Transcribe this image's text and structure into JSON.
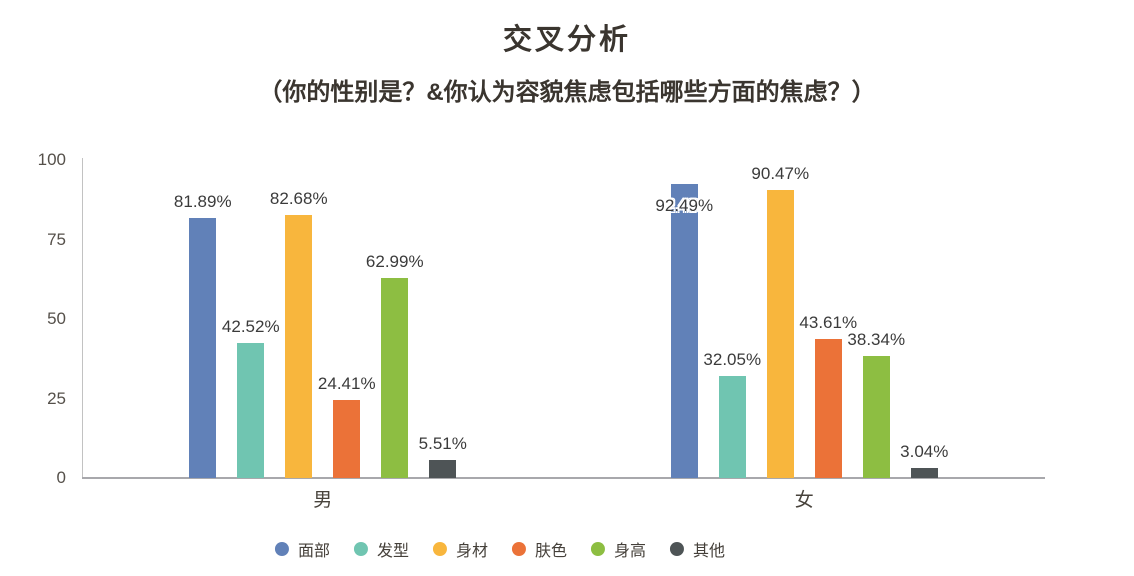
{
  "chart_data": {
    "type": "bar",
    "title": "交叉分析",
    "subtitle": "（你的性别是？&你认为容貌焦虑包括哪些方面的焦虑？）",
    "categories": [
      "男",
      "女"
    ],
    "series": [
      {
        "name": "面部",
        "color": "#6181b8",
        "values": [
          81.89,
          92.49
        ]
      },
      {
        "name": "发型",
        "color": "#70c5b1",
        "values": [
          42.52,
          32.05
        ]
      },
      {
        "name": "身材",
        "color": "#f8b63d",
        "values": [
          82.68,
          90.47
        ]
      },
      {
        "name": "肤色",
        "color": "#eb7238",
        "values": [
          24.41,
          43.61
        ]
      },
      {
        "name": "身高",
        "color": "#8dbe42",
        "values": [
          62.99,
          38.34
        ]
      },
      {
        "name": "其他",
        "color": "#4e5456",
        "values": [
          5.51,
          3.04
        ]
      }
    ],
    "value_label_format": "percent_2dp",
    "xlabel": "",
    "ylabel": "",
    "ylim": [
      0,
      100
    ],
    "yticks": [
      "0",
      "25",
      "50",
      "75",
      "100"
    ],
    "grid": false,
    "legend_position": "bottom",
    "label_overlap": {
      "series_index": 0,
      "category_index": 1
    }
  }
}
